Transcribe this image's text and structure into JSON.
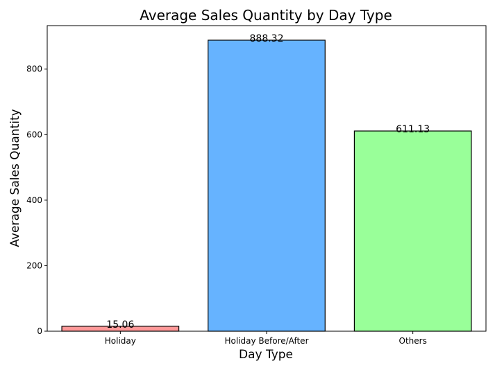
{
  "chart_data": {
    "type": "bar",
    "title": "Average Sales Quantity by Day Type",
    "xlabel": "Day Type",
    "ylabel": "Average Sales Quantity",
    "categories": [
      "Holiday",
      "Holiday Before/After",
      "Others"
    ],
    "values": [
      15.06,
      888.32,
      611.13
    ],
    "value_labels": [
      "15.06",
      "888.32",
      "611.13"
    ],
    "colors": [
      "#ff9999",
      "#66b3ff",
      "#99ff99"
    ],
    "edge_color": "#000000",
    "ylim": [
      0,
      932.7
    ],
    "yticks": [
      0,
      200,
      400,
      600,
      800
    ],
    "grid": false
  }
}
